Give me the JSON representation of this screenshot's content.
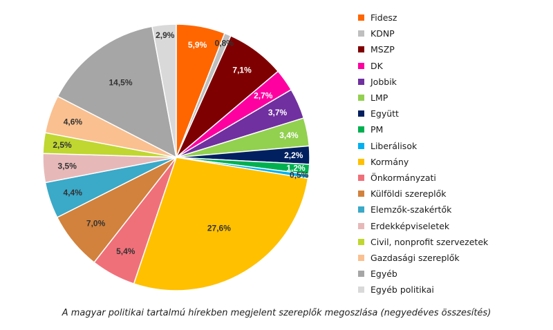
{
  "chart_data": {
    "type": "pie",
    "caption": "A magyar politikai tartalmú hírekben megjelent szereplők megoszlása (negyedéves összesítés)",
    "slices": [
      {
        "name": "Fidesz",
        "value": 5.9,
        "label": "5,9%",
        "color": "#ff6600"
      },
      {
        "name": "KDNP",
        "value": 0.8,
        "label": "0,8%",
        "color": "#bfbfbf"
      },
      {
        "name": "MSZP",
        "value": 7.1,
        "label": "7,1%",
        "color": "#7f0000"
      },
      {
        "name": "DK",
        "value": 2.7,
        "label": "2,7%",
        "color": "#ff00a0"
      },
      {
        "name": "Jobbik",
        "value": 3.7,
        "label": "3,7%",
        "color": "#7030a0"
      },
      {
        "name": "LMP",
        "value": 3.4,
        "label": "3,4%",
        "color": "#92d050"
      },
      {
        "name": "Együtt",
        "value": 2.2,
        "label": "2,2%",
        "color": "#002060"
      },
      {
        "name": "PM",
        "value": 1.2,
        "label": "1,2%",
        "color": "#00b050"
      },
      {
        "name": "Liberálisok",
        "value": 0.5,
        "label": "0,5%",
        "color": "#00b0f0"
      },
      {
        "name": "Kormány",
        "value": 27.6,
        "label": "27,6%",
        "color": "#ffc000"
      },
      {
        "name": "Önkormányzati",
        "value": 5.4,
        "label": "5,4%",
        "color": "#f0707a"
      },
      {
        "name": "Külföldi szereplők",
        "value": 7.0,
        "label": "7,0%",
        "color": "#d2823c"
      },
      {
        "name": "Elemzők-szakértők",
        "value": 4.4,
        "label": "4,4%",
        "color": "#3ba9c8"
      },
      {
        "name": "Erdekképviseletek",
        "value": 3.5,
        "label": "3,5%",
        "color": "#e6b9b8"
      },
      {
        "name": "Civil, nonprofit szervezetek",
        "value": 2.5,
        "label": "2,5%",
        "color": "#bfd730"
      },
      {
        "name": "Gazdasági szereplők",
        "value": 4.6,
        "label": "4,6%",
        "color": "#fac090"
      },
      {
        "name": "Egyéb",
        "value": 14.5,
        "label": "14,5%",
        "color": "#a6a6a6"
      },
      {
        "name": "Egyéb politikai",
        "value": 2.9,
        "label": "2,9%",
        "color": "#d9d9d9"
      }
    ],
    "legend_position": "right"
  }
}
